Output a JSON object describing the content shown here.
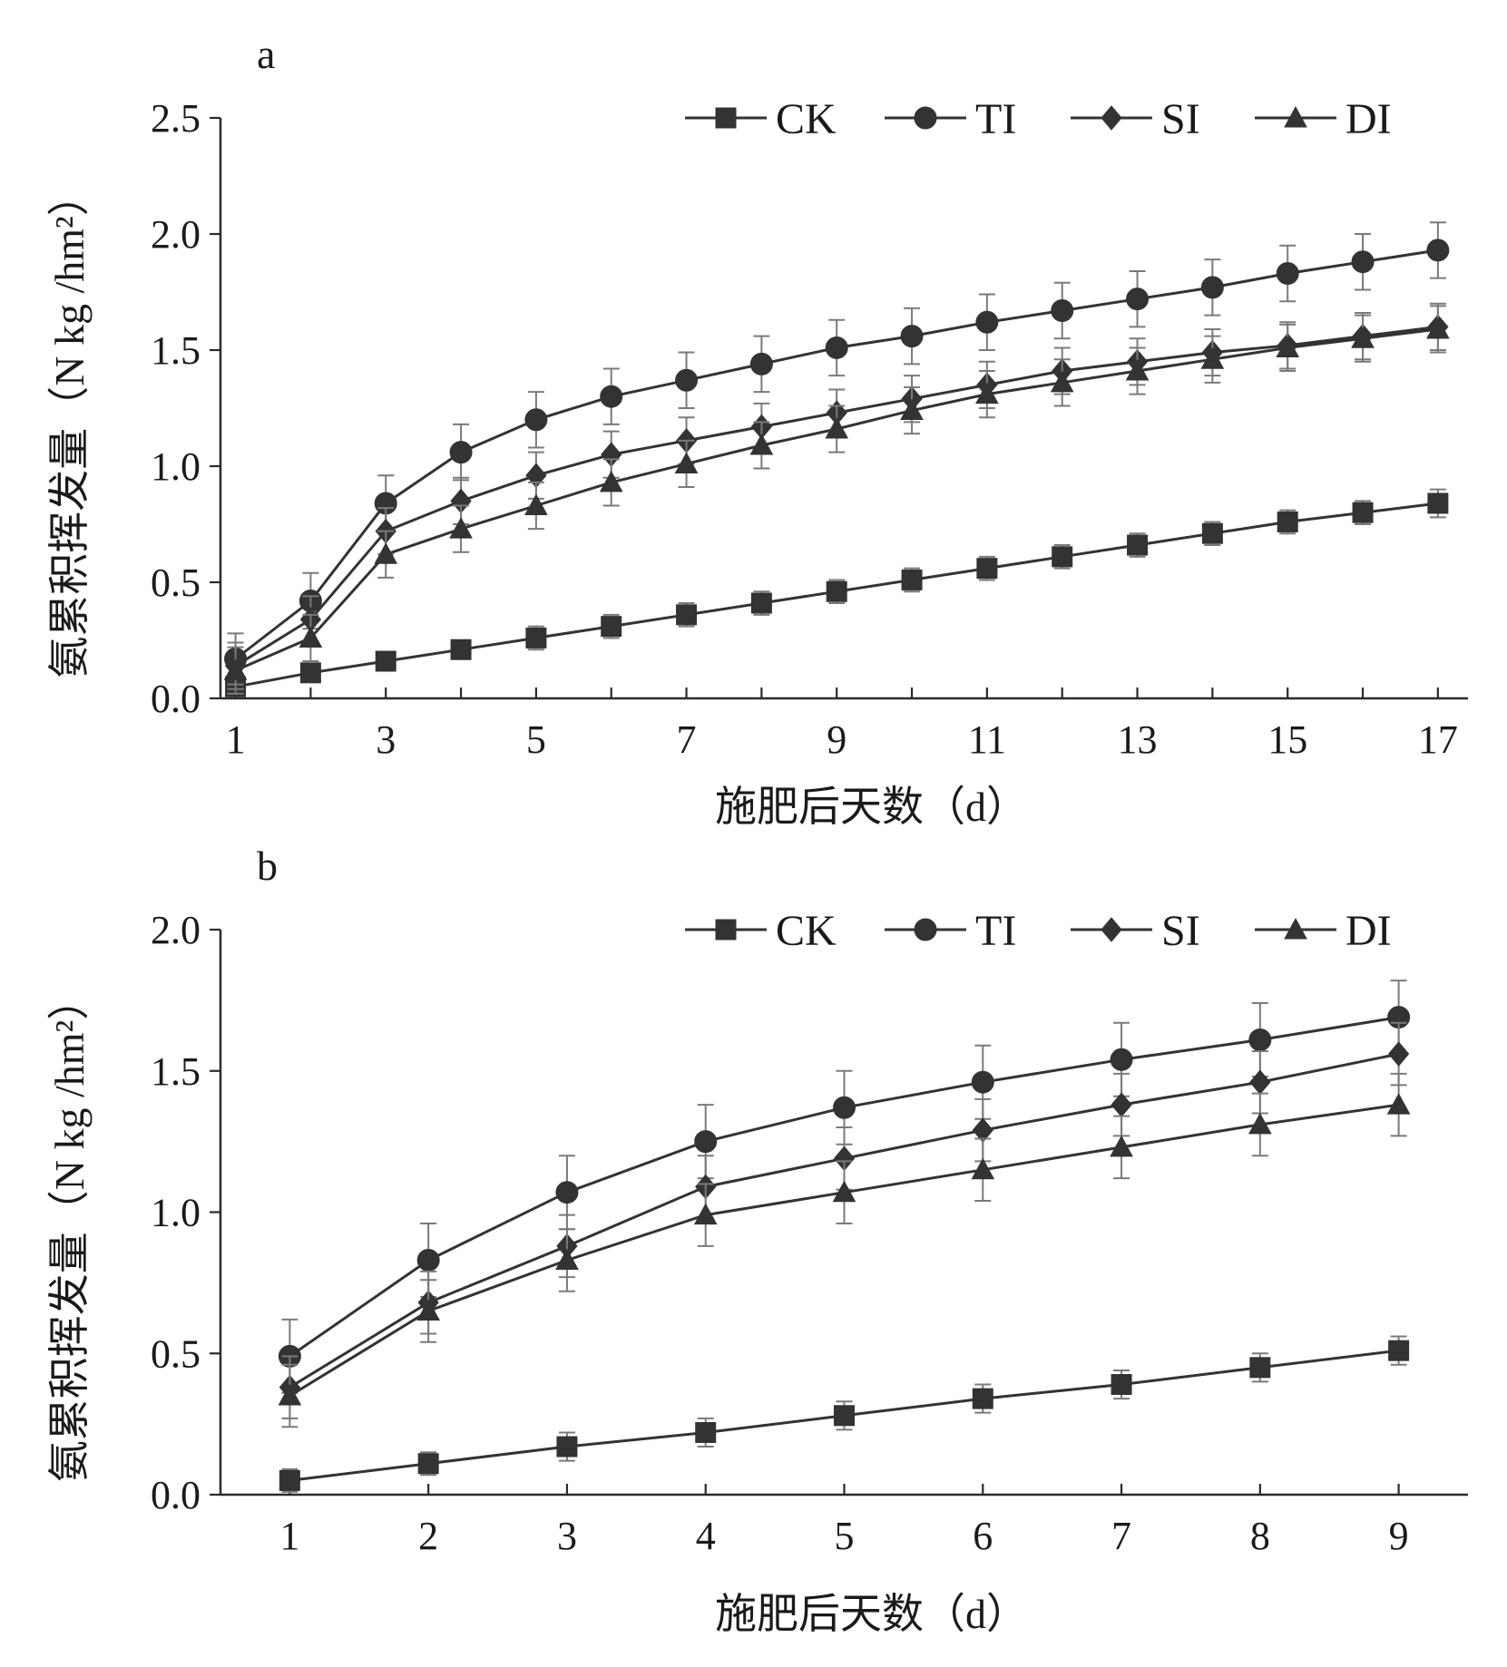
{
  "chart_data": [
    {
      "type": "line",
      "panel_label": "a",
      "xlabel": "施肥后天数（d）",
      "ylabel": "氨累积挥发量（N kg /hm²）",
      "x": [
        1,
        2,
        3,
        4,
        5,
        6,
        7,
        8,
        9,
        10,
        11,
        12,
        13,
        14,
        15,
        16,
        17
      ],
      "x_ticks": [
        "1",
        "3",
        "5",
        "7",
        "9",
        "11",
        "13",
        "15",
        "17"
      ],
      "y_ticks": [
        "0.0",
        "0.5",
        "1.0",
        "1.5",
        "2.0",
        "2.5"
      ],
      "xlim": [
        0.8,
        17.4
      ],
      "ylim": [
        0,
        2.5
      ],
      "grid": false,
      "legend_position": "top-right",
      "series": [
        {
          "name": "CK",
          "marker": "square",
          "values": [
            0.05,
            0.11,
            0.16,
            0.21,
            0.26,
            0.31,
            0.36,
            0.41,
            0.46,
            0.51,
            0.56,
            0.61,
            0.66,
            0.71,
            0.76,
            0.8,
            0.84
          ],
          "errors": [
            0.03,
            0.04,
            0.04,
            0.04,
            0.05,
            0.05,
            0.05,
            0.05,
            0.05,
            0.05,
            0.05,
            0.05,
            0.05,
            0.05,
            0.05,
            0.05,
            0.06
          ]
        },
        {
          "name": "TI",
          "marker": "circle",
          "values": [
            0.17,
            0.42,
            0.84,
            1.06,
            1.2,
            1.3,
            1.37,
            1.44,
            1.51,
            1.56,
            1.62,
            1.67,
            1.72,
            1.77,
            1.83,
            1.88,
            1.93
          ],
          "errors": [
            0.11,
            0.12,
            0.12,
            0.12,
            0.12,
            0.12,
            0.12,
            0.12,
            0.12,
            0.12,
            0.12,
            0.12,
            0.12,
            0.12,
            0.12,
            0.12,
            0.12
          ]
        },
        {
          "name": "SI",
          "marker": "diamond",
          "values": [
            0.14,
            0.34,
            0.72,
            0.85,
            0.96,
            1.05,
            1.11,
            1.17,
            1.23,
            1.29,
            1.35,
            1.41,
            1.45,
            1.49,
            1.52,
            1.56,
            1.6
          ],
          "errors": [
            0.1,
            0.1,
            0.1,
            0.1,
            0.1,
            0.1,
            0.1,
            0.1,
            0.1,
            0.1,
            0.1,
            0.1,
            0.1,
            0.1,
            0.1,
            0.1,
            0.1
          ]
        },
        {
          "name": "DI",
          "marker": "triangle",
          "values": [
            0.12,
            0.26,
            0.62,
            0.73,
            0.83,
            0.93,
            1.01,
            1.09,
            1.16,
            1.24,
            1.31,
            1.36,
            1.41,
            1.46,
            1.51,
            1.55,
            1.59
          ],
          "errors": [
            0.1,
            0.1,
            0.1,
            0.1,
            0.1,
            0.1,
            0.1,
            0.1,
            0.1,
            0.1,
            0.1,
            0.1,
            0.1,
            0.1,
            0.1,
            0.1,
            0.1
          ]
        }
      ]
    },
    {
      "type": "line",
      "panel_label": "b",
      "xlabel": "施肥后天数（d）",
      "ylabel": "氨累积挥发量（N kg /hm²）",
      "x": [
        1,
        2,
        3,
        4,
        5,
        6,
        7,
        8,
        9
      ],
      "x_ticks": [
        "1",
        "2",
        "3",
        "4",
        "5",
        "6",
        "7",
        "8",
        "9"
      ],
      "y_ticks": [
        "0.0",
        "0.5",
        "1.0",
        "1.5",
        "2.0"
      ],
      "xlim": [
        0.5,
        9.5
      ],
      "ylim": [
        0,
        2.0
      ],
      "grid": false,
      "legend_position": "top-right",
      "series": [
        {
          "name": "CK",
          "marker": "square",
          "values": [
            0.05,
            0.11,
            0.17,
            0.22,
            0.28,
            0.34,
            0.39,
            0.45,
            0.51
          ],
          "errors": [
            0.04,
            0.04,
            0.05,
            0.05,
            0.05,
            0.05,
            0.05,
            0.05,
            0.05
          ]
        },
        {
          "name": "TI",
          "marker": "circle",
          "values": [
            0.49,
            0.83,
            1.07,
            1.25,
            1.37,
            1.46,
            1.54,
            1.61,
            1.69
          ],
          "errors": [
            0.13,
            0.13,
            0.13,
            0.13,
            0.13,
            0.13,
            0.13,
            0.13,
            0.13
          ]
        },
        {
          "name": "SI",
          "marker": "diamond",
          "values": [
            0.38,
            0.68,
            0.88,
            1.09,
            1.19,
            1.29,
            1.38,
            1.46,
            1.56
          ],
          "errors": [
            0.11,
            0.11,
            0.11,
            0.11,
            0.11,
            0.11,
            0.11,
            0.11,
            0.11
          ]
        },
        {
          "name": "DI",
          "marker": "triangle",
          "values": [
            0.35,
            0.65,
            0.83,
            0.99,
            1.07,
            1.15,
            1.23,
            1.31,
            1.38
          ],
          "errors": [
            0.11,
            0.11,
            0.11,
            0.11,
            0.11,
            0.11,
            0.11,
            0.11,
            0.11
          ]
        }
      ]
    }
  ]
}
